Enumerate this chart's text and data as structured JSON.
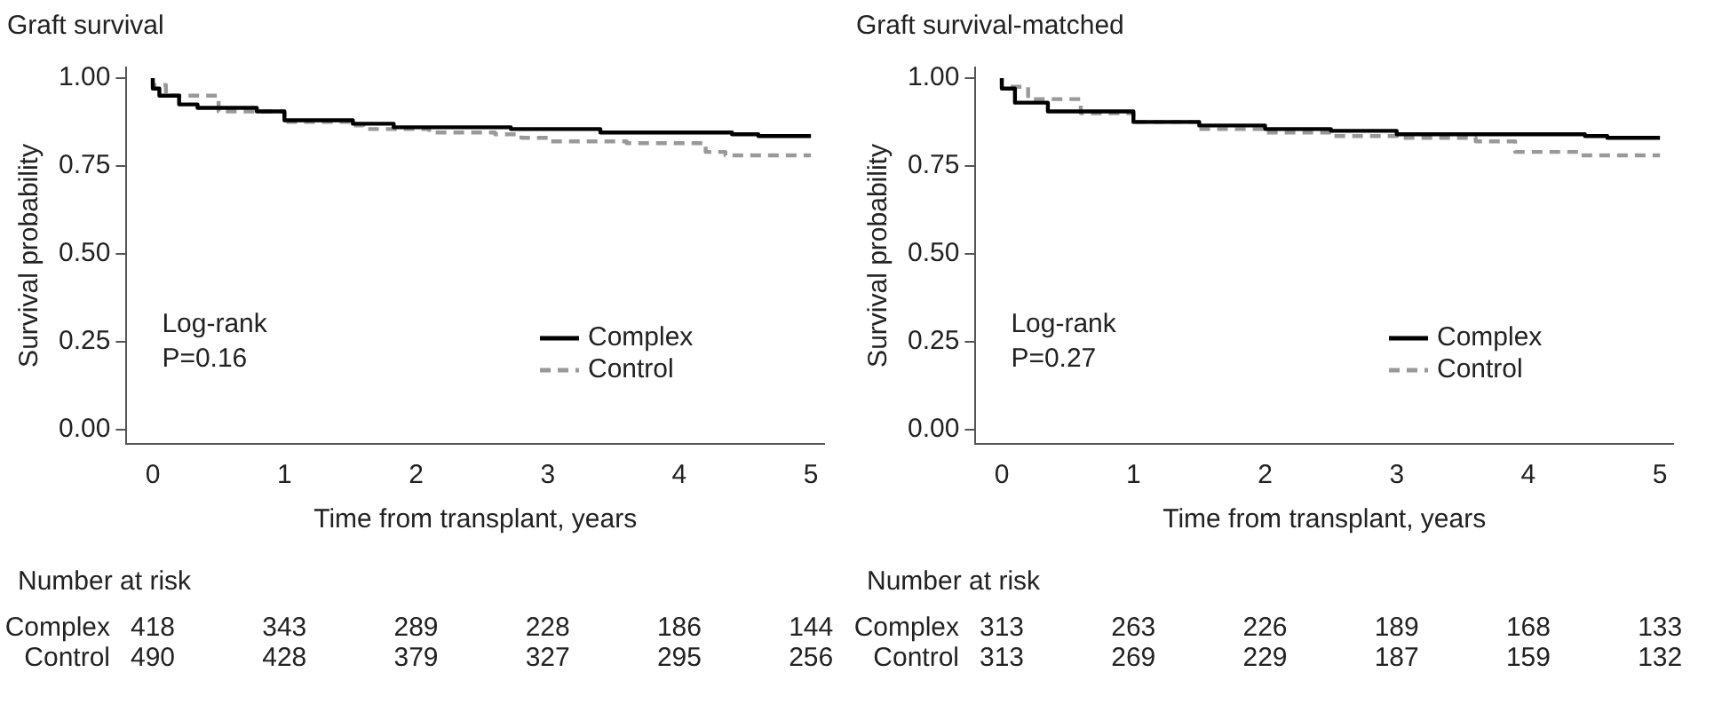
{
  "chart_data": [
    {
      "type": "step",
      "title": "Graft survival",
      "xlabel": "Time from transplant, years",
      "ylabel": "Survival probability",
      "xlim": [
        -0.2,
        5.1
      ],
      "xticks": [
        0,
        1,
        2,
        3,
        4,
        5
      ],
      "ylim": [
        -0.04,
        1.03
      ],
      "yticks": [
        {
          "value": 0,
          "label": "0.00"
        },
        {
          "value": 0.25,
          "label": "0.25"
        },
        {
          "value": 0.5,
          "label": "0.50"
        },
        {
          "value": 0.75,
          "label": "0.75"
        },
        {
          "value": 1,
          "label": "1.00"
        }
      ],
      "grid": false,
      "legend": "bottom right",
      "marker": "none",
      "series": [
        {
          "name": "Complex",
          "color": "#000000",
          "line_style": "solid",
          "x": [
            0,
            0.05,
            0.2,
            0.34,
            0.79,
            1.0,
            1.52,
            1.83,
            2.72,
            3.4,
            4.4,
            4.6,
            5
          ],
          "values": [
            1.0,
            0.97,
            0.95,
            0.925,
            0.915,
            0.905,
            0.88,
            0.87,
            0.86,
            0.855,
            0.845,
            0.84,
            0.835
          ]
        },
        {
          "name": "Control",
          "color": "#999999",
          "line_style": "dashed",
          "x": [
            0,
            0.1,
            0.5,
            1.0,
            1.5,
            1.6,
            2.1,
            2.6,
            2.8,
            3.0,
            3.6,
            4.2,
            4.35,
            5
          ],
          "values": [
            1.0,
            0.98,
            0.95,
            0.905,
            0.875,
            0.865,
            0.855,
            0.845,
            0.84,
            0.83,
            0.82,
            0.815,
            0.79,
            0.78
          ]
        }
      ],
      "annotations": [
        "Log-rank",
        "P=0.16",
        "Number at risk",
        "Complex 418 343 289 228 186 144",
        "Control 490 428 379 327 295 256"
      ]
    },
    {
      "type": "step",
      "title": "Graft survival-matched",
      "xlabel": "Time from transplant, years",
      "ylabel": "Survival probability",
      "xlim": [
        -0.2,
        5.1
      ],
      "xticks": [
        0,
        1,
        2,
        3,
        4,
        5
      ],
      "ylim": [
        -0.04,
        1.03
      ],
      "yticks": [
        {
          "value": 0,
          "label": "0.00"
        },
        {
          "value": 0.25,
          "label": "0.25"
        },
        {
          "value": 0.5,
          "label": "0.50"
        },
        {
          "value": 0.75,
          "label": "0.75"
        },
        {
          "value": 1,
          "label": "1.00"
        }
      ],
      "grid": false,
      "legend": "bottom right",
      "marker": "none",
      "series": [
        {
          "name": "Complex",
          "color": "#000000",
          "line_style": "solid",
          "x": [
            0,
            0.1,
            0.35,
            1.0,
            1.5,
            2.0,
            2.5,
            3.0,
            4.43,
            4.6,
            5
          ],
          "values": [
            1.0,
            0.97,
            0.93,
            0.905,
            0.875,
            0.865,
            0.855,
            0.85,
            0.84,
            0.835,
            0.83
          ]
        },
        {
          "name": "Control",
          "color": "#999999",
          "line_style": "dashed",
          "x": [
            0,
            0.2,
            0.6,
            1.0,
            1.5,
            2.0,
            2.5,
            3.0,
            3.6,
            3.9,
            4.4,
            5
          ],
          "values": [
            1.0,
            0.975,
            0.94,
            0.9,
            0.875,
            0.855,
            0.845,
            0.835,
            0.83,
            0.82,
            0.79,
            0.78
          ]
        }
      ],
      "annotations": [
        "Log-rank",
        "P=0.27",
        "Number at risk",
        "Complex 313 263 226 189 168 133",
        "Control 313 269 229 187 159 132"
      ]
    }
  ]
}
